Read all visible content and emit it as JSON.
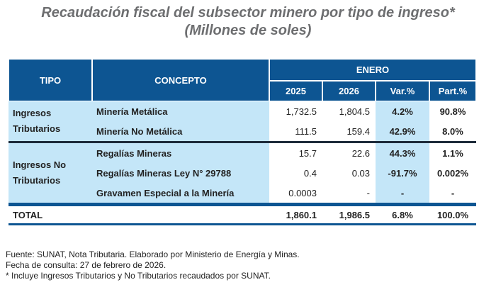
{
  "title": {
    "line1": "Recaudación fiscal del subsector minero por tipo de ingreso*",
    "line2": "(Millones de soles)"
  },
  "colors": {
    "header": "#0d5592",
    "highlight": "#c4e6f8"
  },
  "table": {
    "headers": {
      "tipo": "TIPO",
      "concepto": "CONCEPTO",
      "period": "ENERO",
      "y2025": "2025",
      "y2026": "2026",
      "var": "Var.%",
      "part": "Part.%"
    },
    "groups": [
      {
        "tipo": "Ingresos Tributarios",
        "rows": [
          {
            "concepto": "Minería Metálica",
            "y2025": "1,732.5",
            "y2026": "1,804.5",
            "var": "4.2%",
            "part": "90.8%"
          },
          {
            "concepto": "Minería No Metálica",
            "y2025": "111.5",
            "y2026": "159.4",
            "var": "42.9%",
            "part": "8.0%"
          }
        ]
      },
      {
        "tipo": "Ingresos No Tributarios",
        "rows": [
          {
            "concepto": "Regalías Mineras",
            "y2025": "15.7",
            "y2026": "22.6",
            "var": "44.3%",
            "part": "1.1%"
          },
          {
            "concepto": "Regalías Mineras Ley N° 29788",
            "y2025": "0.4",
            "y2026": "0.03",
            "var": "-91.7%",
            "part": "0.002%"
          },
          {
            "concepto": "Gravamen Especial a la Minería",
            "y2025": "0.0003",
            "y2026": "-",
            "var": "-",
            "part": "-"
          }
        ]
      }
    ],
    "total": {
      "label": "TOTAL",
      "y2025": "1,860.1",
      "y2026": "1,986.5",
      "var": "6.8%",
      "part": "100.0%"
    }
  },
  "footnotes": [
    "Fuente: SUNAT, Nota Tributaria. Elaborado por Ministerio de Energía y Minas.",
    "Fecha de consulta: 27 de febrero de 2026.",
    "* Incluye Ingresos Tributarios y No Tributarios recaudados por SUNAT."
  ]
}
